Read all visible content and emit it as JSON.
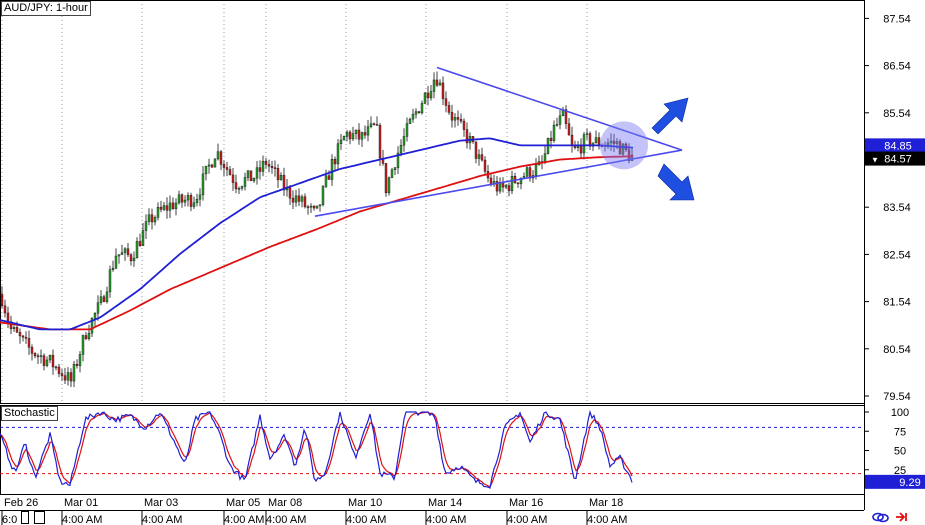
{
  "chart_data": {
    "type": "candlestick",
    "title": "AUD/JPY: 1-hour",
    "price_axis": {
      "ticks": [
        79.54,
        80.54,
        81.54,
        82.54,
        83.54,
        84.54,
        85.54,
        86.54,
        87.54
      ],
      "ylim": [
        79.3,
        87.9
      ]
    },
    "current_price": {
      "label": "84.85",
      "value": 84.85,
      "color": "#1f1fd6"
    },
    "bid_price": {
      "label": "84.57",
      "value": 84.57,
      "color": "#000000"
    },
    "date_labels": [
      "Feb 26",
      "Mar 01",
      "Mar 03",
      "Mar 05",
      "Mar 08",
      "Mar 10",
      "Mar 14",
      "Mar 16",
      "Mar 18"
    ],
    "time_labels": [
      "6:0",
      "4:00 AM",
      "4:00 AM",
      "4:00 AM",
      "4:00 AM",
      "4:00 AM",
      "4:00 AM",
      "4:00 AM",
      "4:00 AM"
    ],
    "price_keypoints": [
      [
        0,
        81.7
      ],
      [
        10,
        80.95
      ],
      [
        30,
        80.5
      ],
      [
        50,
        80.25
      ],
      [
        70,
        79.85
      ],
      [
        85,
        80.9
      ],
      [
        100,
        81.5
      ],
      [
        115,
        82.55
      ],
      [
        130,
        82.5
      ],
      [
        150,
        83.3
      ],
      [
        170,
        83.6
      ],
      [
        195,
        83.75
      ],
      [
        215,
        84.75
      ],
      [
        235,
        84.05
      ],
      [
        255,
        84.2
      ],
      [
        265,
        84.5
      ],
      [
        285,
        83.9
      ],
      [
        300,
        83.65
      ],
      [
        315,
        83.35
      ],
      [
        330,
        84.4
      ],
      [
        345,
        85.1
      ],
      [
        360,
        85.0
      ],
      [
        375,
        85.25
      ],
      [
        385,
        83.95
      ],
      [
        395,
        84.6
      ],
      [
        410,
        85.35
      ],
      [
        420,
        85.75
      ],
      [
        435,
        86.35
      ],
      [
        450,
        85.5
      ],
      [
        470,
        84.9
      ],
      [
        488,
        84.1
      ],
      [
        500,
        83.9
      ],
      [
        520,
        84.2
      ],
      [
        540,
        84.4
      ],
      [
        553,
        85.2
      ],
      [
        562,
        85.45
      ],
      [
        572,
        84.7
      ],
      [
        585,
        84.95
      ],
      [
        600,
        84.9
      ],
      [
        615,
        84.9
      ],
      [
        625,
        84.7
      ],
      [
        633,
        84.57
      ]
    ],
    "ma_slow": [
      [
        0,
        81.1
      ],
      [
        50,
        80.95
      ],
      [
        90,
        80.95
      ],
      [
        130,
        81.35
      ],
      [
        170,
        81.8
      ],
      [
        220,
        82.25
      ],
      [
        270,
        82.7
      ],
      [
        320,
        83.1
      ],
      [
        360,
        83.45
      ],
      [
        400,
        83.7
      ],
      [
        440,
        83.95
      ],
      [
        480,
        84.2
      ],
      [
        520,
        84.4
      ],
      [
        560,
        84.55
      ],
      [
        600,
        84.6
      ],
      [
        633,
        84.62
      ]
    ],
    "ma_fast": [
      [
        0,
        81.15
      ],
      [
        40,
        80.95
      ],
      [
        70,
        80.95
      ],
      [
        100,
        81.2
      ],
      [
        140,
        81.8
      ],
      [
        180,
        82.55
      ],
      [
        220,
        83.2
      ],
      [
        260,
        83.75
      ],
      [
        300,
        84.05
      ],
      [
        340,
        84.35
      ],
      [
        380,
        84.55
      ],
      [
        420,
        84.75
      ],
      [
        460,
        84.95
      ],
      [
        490,
        85.0
      ],
      [
        520,
        84.85
      ],
      [
        560,
        84.85
      ],
      [
        600,
        84.85
      ],
      [
        633,
        84.8
      ]
    ],
    "trendline_upper": [
      [
        437,
        86.5
      ],
      [
        682,
        84.75
      ]
    ],
    "trendline_lower": [
      [
        315,
        83.35
      ],
      [
        682,
        84.75
      ]
    ],
    "annotations": [
      {
        "type": "circle",
        "x": 624,
        "y": 84.85,
        "note": "apex highlight"
      },
      {
        "type": "arrow",
        "direction": "up"
      },
      {
        "type": "arrow",
        "direction": "down"
      }
    ],
    "stochastic": {
      "title": "Stochastic",
      "ticks": [
        25,
        50,
        75,
        100
      ],
      "levels": [
        80,
        20
      ],
      "value_label": "9.29",
      "value": 9.29,
      "k_color": "#1f1fd6",
      "d_color": "#e01010",
      "keypoints": [
        [
          0,
          70
        ],
        [
          15,
          20
        ],
        [
          25,
          60
        ],
        [
          35,
          15
        ],
        [
          50,
          70
        ],
        [
          60,
          10
        ],
        [
          70,
          5
        ],
        [
          85,
          90
        ],
        [
          100,
          100
        ],
        [
          115,
          90
        ],
        [
          130,
          95
        ],
        [
          145,
          80
        ],
        [
          160,
          100
        ],
        [
          175,
          60
        ],
        [
          185,
          30
        ],
        [
          195,
          90
        ],
        [
          210,
          100
        ],
        [
          220,
          70
        ],
        [
          230,
          30
        ],
        [
          245,
          10
        ],
        [
          260,
          95
        ],
        [
          270,
          40
        ],
        [
          285,
          70
        ],
        [
          295,
          30
        ],
        [
          305,
          80
        ],
        [
          315,
          10
        ],
        [
          325,
          20
        ],
        [
          340,
          100
        ],
        [
          355,
          40
        ],
        [
          370,
          100
        ],
        [
          380,
          20
        ],
        [
          395,
          15
        ],
        [
          405,
          100
        ],
        [
          420,
          100
        ],
        [
          435,
          95
        ],
        [
          445,
          20
        ],
        [
          460,
          30
        ],
        [
          475,
          10
        ],
        [
          490,
          5
        ],
        [
          505,
          80
        ],
        [
          520,
          100
        ],
        [
          530,
          60
        ],
        [
          545,
          100
        ],
        [
          560,
          90
        ],
        [
          575,
          10
        ],
        [
          590,
          100
        ],
        [
          600,
          80
        ],
        [
          610,
          30
        ],
        [
          620,
          40
        ],
        [
          633,
          9
        ]
      ]
    },
    "colors": {
      "bull": "#2aa02a",
      "bear": "#d02020",
      "ma_slow": "#e01010",
      "ma_fast": "#1f1fd6",
      "trend": "#4a4aef"
    }
  }
}
